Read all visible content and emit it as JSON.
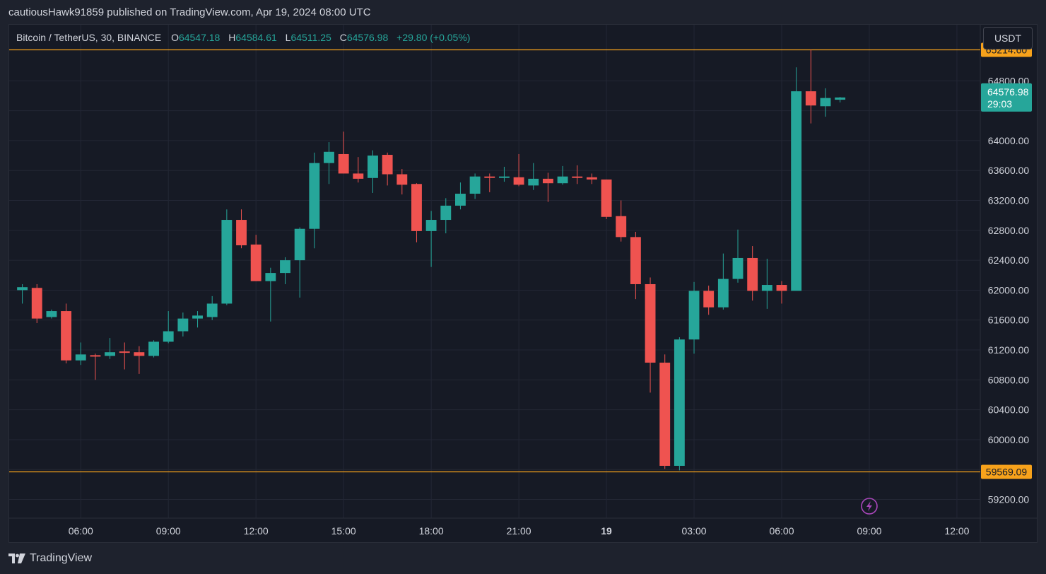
{
  "header": {
    "publish_line": "cautiousHawk91859 published on TradingView.com, Apr 19, 2024 08:00 UTC"
  },
  "legend": {
    "symbol": "Bitcoin / TetherUS, 30, BINANCE",
    "open_label": "O",
    "open": "64547.18",
    "high_label": "H",
    "high": "64584.61",
    "low_label": "L",
    "low": "64511.25",
    "close_label": "C",
    "close": "64576.98",
    "change": "+29.80 (+0.05%)"
  },
  "currency_button": "USDT",
  "footer": {
    "brand": "TradingView",
    "logo_icon": "tradingview-logo-icon"
  },
  "alert_icon": "lightning-icon",
  "colors": {
    "up": "#26a69a",
    "down": "#ef5350",
    "hline": "#f7a21b",
    "grid": "#232735",
    "background": "#161a25",
    "alert": "#ab47bc"
  },
  "chart_data": {
    "type": "candlestick",
    "symbol": "Bitcoin / TetherUS",
    "interval": "30",
    "exchange": "BINANCE",
    "y_range": [
      58950,
      65550
    ],
    "y_ticks": [
      59200,
      59600,
      60000,
      60400,
      60800,
      61200,
      61600,
      62000,
      62400,
      62800,
      63200,
      63600,
      64000,
      64400,
      64800
    ],
    "y_tick_labels_shown": [
      "64800.00",
      "64000.00",
      "63600.00",
      "63200.00",
      "62800.00",
      "62400.00",
      "62000.00",
      "61600.00",
      "61200.00",
      "60800.00",
      "60400.00",
      "60000.00",
      "59200.00"
    ],
    "x_ticks": [
      {
        "label": "06:00",
        "index": 4
      },
      {
        "label": "09:00",
        "index": 10
      },
      {
        "label": "12:00",
        "index": 16
      },
      {
        "label": "15:00",
        "index": 22
      },
      {
        "label": "18:00",
        "index": 28
      },
      {
        "label": "21:00",
        "index": 34
      },
      {
        "label": "19",
        "index": 40,
        "bold": true
      },
      {
        "label": "03:00",
        "index": 46
      },
      {
        "label": "06:00",
        "index": 52
      },
      {
        "label": "09:00",
        "index": 58
      },
      {
        "label": "12:00",
        "index": 64
      }
    ],
    "x_index_range": [
      -0.9,
      65.6
    ],
    "horizontal_lines": [
      {
        "price": 65214.6,
        "label": "65214.60"
      },
      {
        "price": 59569.09,
        "label": "59569.09"
      }
    ],
    "last_price": {
      "price": 64576.98,
      "label": "64576.98",
      "countdown": "29:03"
    },
    "candles": [
      {
        "o": 62000,
        "h": 62080,
        "l": 61820,
        "c": 62040
      },
      {
        "o": 62030,
        "h": 62080,
        "l": 61560,
        "c": 61620
      },
      {
        "o": 61640,
        "h": 61740,
        "l": 61620,
        "c": 61720
      },
      {
        "o": 61720,
        "h": 61820,
        "l": 61020,
        "c": 61060
      },
      {
        "o": 61060,
        "h": 61300,
        "l": 61000,
        "c": 61140
      },
      {
        "o": 61130,
        "h": 61150,
        "l": 60800,
        "c": 61120
      },
      {
        "o": 61120,
        "h": 61360,
        "l": 61080,
        "c": 61170
      },
      {
        "o": 61180,
        "h": 61300,
        "l": 60940,
        "c": 61170
      },
      {
        "o": 61170,
        "h": 61250,
        "l": 60880,
        "c": 61120
      },
      {
        "o": 61120,
        "h": 61330,
        "l": 61100,
        "c": 61310
      },
      {
        "o": 61310,
        "h": 61720,
        "l": 61290,
        "c": 61450
      },
      {
        "o": 61450,
        "h": 61700,
        "l": 61380,
        "c": 61620
      },
      {
        "o": 61620,
        "h": 61720,
        "l": 61500,
        "c": 61660
      },
      {
        "o": 61640,
        "h": 61920,
        "l": 61600,
        "c": 61820
      },
      {
        "o": 61820,
        "h": 63080,
        "l": 61800,
        "c": 62940
      },
      {
        "o": 62940,
        "h": 63080,
        "l": 62560,
        "c": 62600
      },
      {
        "o": 62610,
        "h": 62740,
        "l": 62120,
        "c": 62120
      },
      {
        "o": 62120,
        "h": 62300,
        "l": 61580,
        "c": 62230
      },
      {
        "o": 62230,
        "h": 62440,
        "l": 62080,
        "c": 62400
      },
      {
        "o": 62400,
        "h": 62840,
        "l": 61900,
        "c": 62820
      },
      {
        "o": 62820,
        "h": 63840,
        "l": 62560,
        "c": 63700
      },
      {
        "o": 63700,
        "h": 63980,
        "l": 63420,
        "c": 63850
      },
      {
        "o": 63820,
        "h": 64120,
        "l": 63560,
        "c": 63560
      },
      {
        "o": 63560,
        "h": 63780,
        "l": 63440,
        "c": 63490
      },
      {
        "o": 63500,
        "h": 63870,
        "l": 63300,
        "c": 63800
      },
      {
        "o": 63810,
        "h": 63840,
        "l": 63400,
        "c": 63550
      },
      {
        "o": 63550,
        "h": 63620,
        "l": 63280,
        "c": 63410
      },
      {
        "o": 63420,
        "h": 63430,
        "l": 62640,
        "c": 62790
      },
      {
        "o": 62790,
        "h": 63060,
        "l": 62310,
        "c": 62940
      },
      {
        "o": 62940,
        "h": 63230,
        "l": 62760,
        "c": 63130
      },
      {
        "o": 63130,
        "h": 63440,
        "l": 63080,
        "c": 63290
      },
      {
        "o": 63290,
        "h": 63560,
        "l": 63220,
        "c": 63520
      },
      {
        "o": 63520,
        "h": 63560,
        "l": 63310,
        "c": 63510
      },
      {
        "o": 63510,
        "h": 63650,
        "l": 63450,
        "c": 63520
      },
      {
        "o": 63510,
        "h": 63820,
        "l": 63390,
        "c": 63410
      },
      {
        "o": 63400,
        "h": 63700,
        "l": 63340,
        "c": 63490
      },
      {
        "o": 63490,
        "h": 63570,
        "l": 63180,
        "c": 63430
      },
      {
        "o": 63430,
        "h": 63660,
        "l": 63410,
        "c": 63520
      },
      {
        "o": 63520,
        "h": 63670,
        "l": 63420,
        "c": 63510
      },
      {
        "o": 63510,
        "h": 63560,
        "l": 63420,
        "c": 63480
      },
      {
        "o": 63480,
        "h": 63480,
        "l": 62950,
        "c": 62980
      },
      {
        "o": 62990,
        "h": 63200,
        "l": 62650,
        "c": 62710
      },
      {
        "o": 62710,
        "h": 62780,
        "l": 61880,
        "c": 62080
      },
      {
        "o": 62080,
        "h": 62170,
        "l": 60630,
        "c": 61030
      },
      {
        "o": 61030,
        "h": 61140,
        "l": 59610,
        "c": 59650
      },
      {
        "o": 59650,
        "h": 61370,
        "l": 59590,
        "c": 61340
      },
      {
        "o": 61340,
        "h": 62110,
        "l": 61150,
        "c": 61990
      },
      {
        "o": 61990,
        "h": 62060,
        "l": 61670,
        "c": 61770
      },
      {
        "o": 61770,
        "h": 62490,
        "l": 61740,
        "c": 62150
      },
      {
        "o": 62150,
        "h": 62810,
        "l": 62100,
        "c": 62430
      },
      {
        "o": 62430,
        "h": 62590,
        "l": 61860,
        "c": 61990
      },
      {
        "o": 61990,
        "h": 62420,
        "l": 61750,
        "c": 62070
      },
      {
        "o": 62070,
        "h": 62120,
        "l": 61820,
        "c": 61990
      },
      {
        "o": 61990,
        "h": 64980,
        "l": 61990,
        "c": 64660
      },
      {
        "o": 64660,
        "h": 65220,
        "l": 64230,
        "c": 64470
      },
      {
        "o": 64460,
        "h": 64700,
        "l": 64320,
        "c": 64570
      },
      {
        "o": 64547.18,
        "h": 64584.61,
        "l": 64511.25,
        "c": 64576.98
      }
    ]
  }
}
